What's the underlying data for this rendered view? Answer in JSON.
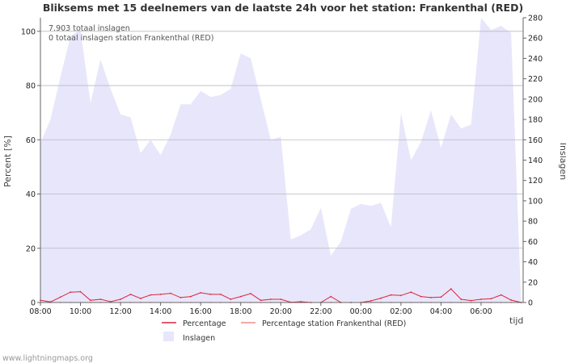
{
  "chart_data": {
    "type": "area",
    "title": "Bliksems met 15 deelnemers van de laatste 24h voor het station: Frankenthal (RED)",
    "xlabel": "tijd",
    "ylabel_left": "Percent   [%]",
    "ylabel_right": "Inslagen",
    "ylim_left": [
      0,
      105
    ],
    "ylim_right": [
      0,
      280
    ],
    "yticks_left": [
      "0",
      "20",
      "40",
      "60",
      "80",
      "100"
    ],
    "yticks_right": [
      "0",
      "20",
      "40",
      "60",
      "80",
      "100",
      "120",
      "140",
      "160",
      "180",
      "200",
      "220",
      "240",
      "260",
      "280"
    ],
    "xticks": [
      "08:00",
      "10:00",
      "12:00",
      "14:00",
      "16:00",
      "18:00",
      "20:00",
      "22:00",
      "00:00",
      "02:00",
      "04:00",
      "06:00"
    ],
    "hours": [
      0,
      0.5,
      1,
      1.5,
      2,
      2.5,
      3,
      3.5,
      4,
      4.5,
      5,
      5.5,
      6,
      6.5,
      7,
      7.5,
      8,
      8.5,
      9,
      9.5,
      10,
      10.5,
      11,
      11.5,
      12,
      12.5,
      13,
      13.5,
      14,
      14.5,
      15,
      15.5,
      16,
      16.5,
      17,
      17.5,
      18,
      18.5,
      19,
      19.5,
      20,
      20.5,
      21,
      21.5,
      22,
      22.5,
      23,
      23.5,
      24
    ],
    "series": [
      {
        "name": "Inslagen",
        "axis": "right",
        "color": "#e8e6fa",
        "values": [
          157,
          180,
          222,
          262,
          268,
          196,
          239,
          210,
          185,
          182,
          147,
          160,
          145,
          165,
          195,
          195,
          208,
          202,
          204,
          210,
          245,
          240,
          200,
          160,
          163,
          62,
          66,
          72,
          93,
          46,
          60,
          92,
          97,
          95,
          98,
          74,
          186,
          140,
          158,
          189,
          152,
          185,
          171,
          175,
          285,
          268,
          272,
          265,
          0
        ]
      },
      {
        "name": "Percentage",
        "axis": "left",
        "color": "#d7263d",
        "values": [
          0.8,
          0.2,
          2,
          3.8,
          4,
          0.8,
          1.2,
          0.3,
          1.2,
          3,
          1.5,
          2.8,
          3,
          3.4,
          1.8,
          2.2,
          3.6,
          3,
          3,
          1.2,
          2.2,
          3.3,
          0.8,
          1.2,
          1.2,
          0.1,
          0.3,
          0,
          0,
          2.2,
          0,
          0,
          0,
          0.6,
          1.6,
          2.8,
          2.6,
          3.8,
          2.2,
          1.8,
          2,
          5,
          1.2,
          0.7,
          1.2,
          1.4,
          2.8,
          0.9,
          0
        ]
      },
      {
        "name": "Percentage station Frankenthal (RED)",
        "axis": "left",
        "color": "#f28b8b",
        "values": [
          0,
          0,
          0,
          0,
          0,
          0,
          0,
          0,
          0,
          0,
          0,
          0,
          0,
          0,
          0,
          0,
          0,
          0,
          0,
          0,
          0,
          0,
          0,
          0,
          0,
          0,
          0,
          0,
          0,
          0,
          0,
          0,
          0,
          0,
          0,
          0,
          0,
          0,
          0,
          0,
          0,
          0,
          0,
          0,
          0,
          0,
          0,
          0,
          0
        ]
      }
    ],
    "legend": [
      "Percentage",
      "Percentage station Frankenthal (RED)",
      "Inslagen"
    ],
    "annotations": [
      "7.903 totaal inslagen",
      "0 totaal inslagen station Frankenthal (RED)"
    ],
    "grid": true,
    "legend_position": "bottom"
  },
  "footer": "www.lightningmaps.org"
}
